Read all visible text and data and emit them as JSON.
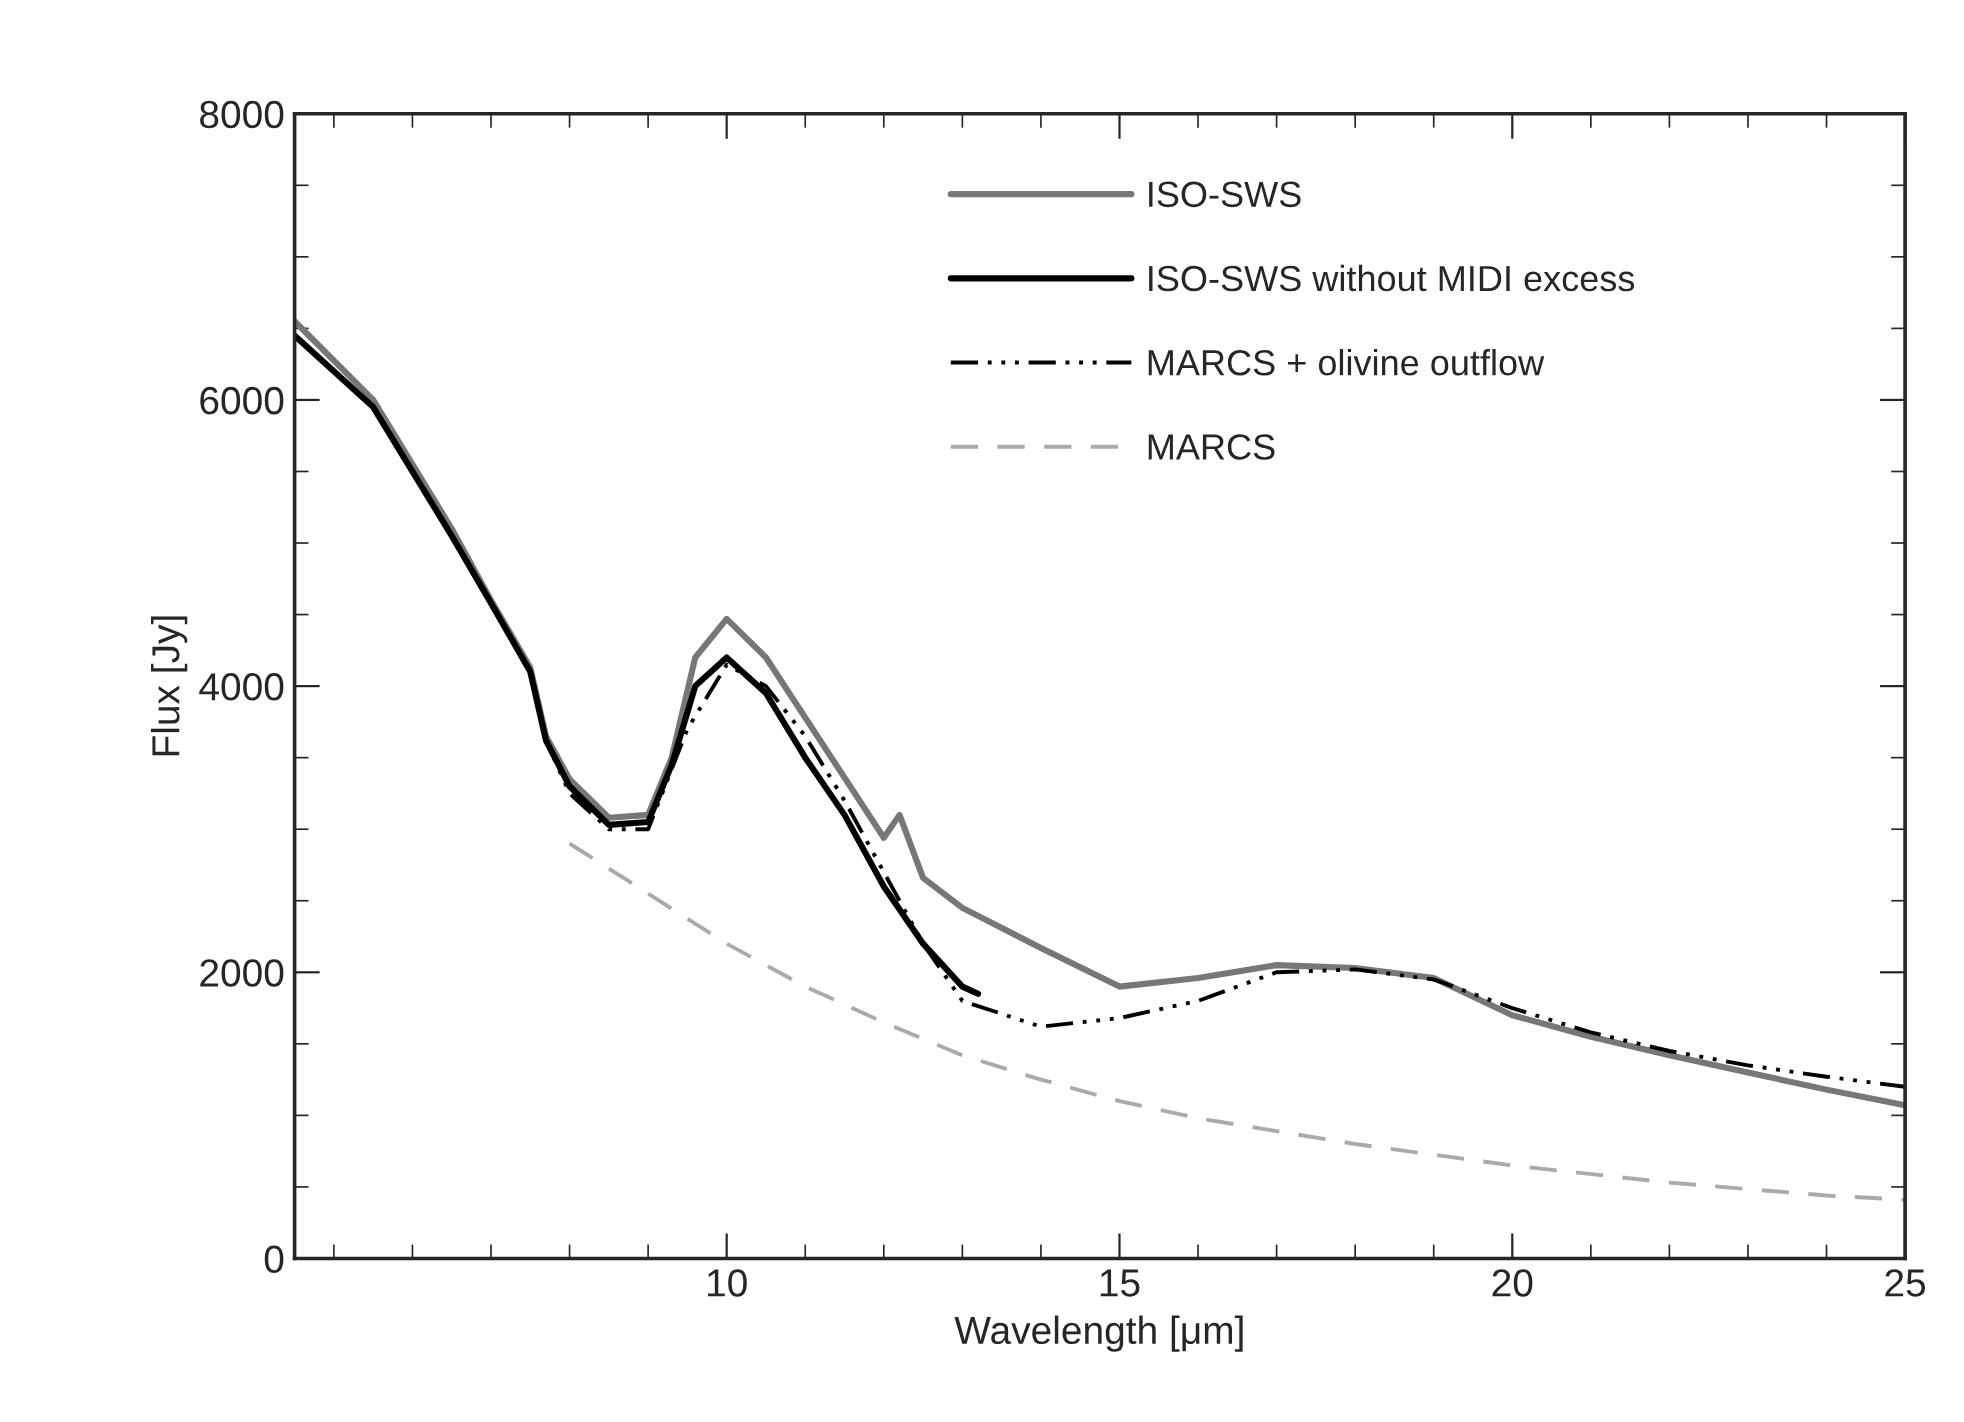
{
  "chart_data": {
    "type": "line",
    "xlabel": "Wavelength [μm]",
    "ylabel": "Flux [Jy]",
    "xlim": [
      4.5,
      25
    ],
    "xticks": [
      10,
      15,
      20,
      25
    ],
    "ylim": [
      0,
      8000
    ],
    "yticks": [
      0,
      2000,
      4000,
      6000,
      8000
    ],
    "grid": false,
    "legend": "top",
    "marker": "none",
    "series": [
      {
        "name": "ISO-SWS",
        "color": "#777777",
        "line_style": "solid",
        "x": [
          4.5,
          5.5,
          6.5,
          7.0,
          7.5,
          7.7,
          8.0,
          8.5,
          9.0,
          9.3,
          9.6,
          10.0,
          10.5,
          11.0,
          11.5,
          12.0,
          12.2,
          12.5,
          13.0,
          14.0,
          15.0,
          16.0,
          17.0,
          18.0,
          19.0,
          20.0,
          21.0,
          22.0,
          23.0,
          24.0,
          25.0
        ],
        "values": [
          6550,
          6000,
          5100,
          4600,
          4130,
          3650,
          3350,
          3080,
          3100,
          3500,
          4200,
          4470,
          4200,
          3780,
          3360,
          2940,
          3100,
          2660,
          2450,
          2170,
          1900,
          1960,
          2050,
          2030,
          1960,
          1700,
          1550,
          1420,
          1300,
          1180,
          1070
        ]
      },
      {
        "name": "ISO-SWS without MIDI excess",
        "color": "#000000",
        "line_style": "solid",
        "x": [
          4.5,
          5.5,
          6.5,
          7.0,
          7.5,
          7.7,
          8.0,
          8.5,
          9.0,
          9.3,
          9.6,
          10.0,
          10.5,
          11.0,
          11.5,
          12.0,
          12.5,
          13.0,
          13.2
        ],
        "values": [
          6450,
          5950,
          5050,
          4580,
          4100,
          3620,
          3300,
          3030,
          3050,
          3450,
          4000,
          4200,
          3950,
          3500,
          3100,
          2600,
          2200,
          1900,
          1850
        ]
      },
      {
        "name": "MARCS + olivine outflow",
        "color": "#000000",
        "line_style": "dashdotdot",
        "x": [
          4.5,
          5.5,
          6.5,
          7.0,
          7.5,
          7.7,
          8.0,
          8.5,
          9.0,
          9.5,
          10.0,
          10.5,
          11.0,
          11.5,
          12.0,
          12.5,
          13.0,
          14.0,
          15.0,
          16.0,
          17.0,
          18.0,
          19.0,
          20.0,
          21.0,
          22.0,
          23.0,
          24.0,
          25.0
        ],
        "values": [
          6450,
          5950,
          5050,
          4580,
          4100,
          3620,
          3250,
          3000,
          3000,
          3700,
          4150,
          4000,
          3650,
          3200,
          2700,
          2200,
          1800,
          1620,
          1680,
          1800,
          2000,
          2020,
          1950,
          1750,
          1580,
          1450,
          1350,
          1270,
          1200
        ]
      },
      {
        "name": "MARCS",
        "color": "#aaaaaa",
        "line_style": "dashed",
        "x": [
          8.0,
          9.0,
          10.0,
          11.0,
          12.0,
          13.0,
          14.0,
          15.0,
          16.0,
          18.0,
          20.0,
          22.0,
          24.0,
          25.0
        ],
        "values": [
          2900,
          2550,
          2200,
          1900,
          1650,
          1420,
          1250,
          1100,
          980,
          800,
          650,
          530,
          440,
          410
        ]
      }
    ]
  }
}
